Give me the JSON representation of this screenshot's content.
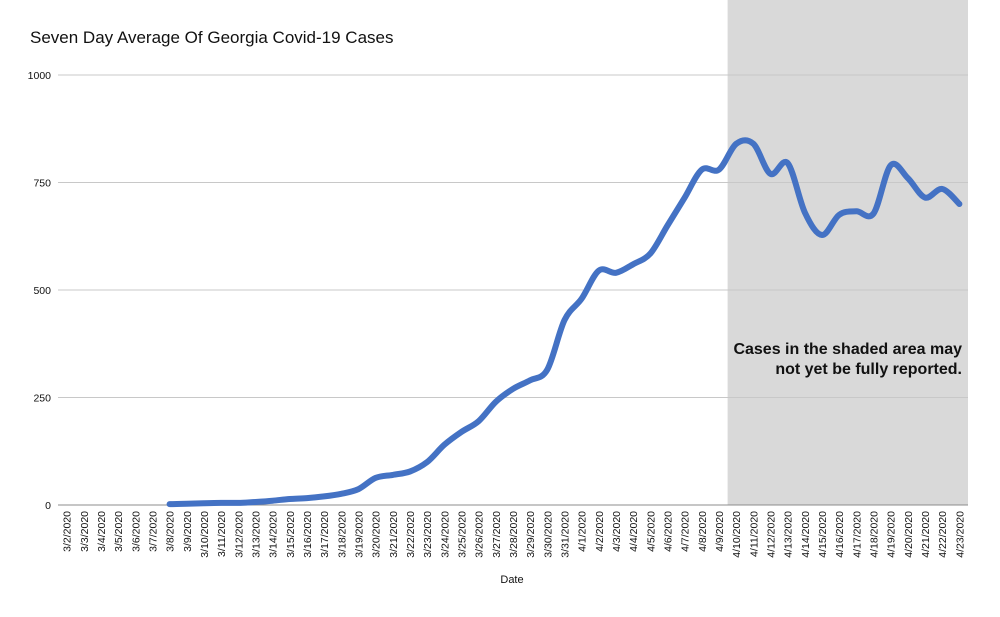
{
  "chart_data": {
    "type": "line",
    "title": "Seven Day Average Of Georgia Covid-19 Cases",
    "xlabel": "Date",
    "ylabel": "",
    "ylim": [
      0,
      1000
    ],
    "yticks": [
      0,
      250,
      500,
      750,
      1000
    ],
    "grid": true,
    "line_color": "#4472c4",
    "shade_color": "#d9d9d9",
    "shade_range": [
      "4/10/2020",
      "4/23/2020"
    ],
    "annotation": [
      "Cases in the shaded area may",
      "not yet be fully reported."
    ],
    "categories": [
      "3/2/2020",
      "3/3/2020",
      "3/4/2020",
      "3/5/2020",
      "3/6/2020",
      "3/7/2020",
      "3/8/2020",
      "3/9/2020",
      "3/10/2020",
      "3/11/2020",
      "3/12/2020",
      "3/13/2020",
      "3/14/2020",
      "3/15/2020",
      "3/16/2020",
      "3/17/2020",
      "3/18/2020",
      "3/19/2020",
      "3/20/2020",
      "3/21/2020",
      "3/22/2020",
      "3/23/2020",
      "3/24/2020",
      "3/25/2020",
      "3/26/2020",
      "3/27/2020",
      "3/28/2020",
      "3/29/2020",
      "3/30/2020",
      "3/31/2020",
      "4/1/2020",
      "4/2/2020",
      "4/3/2020",
      "4/4/2020",
      "4/5/2020",
      "4/6/2020",
      "4/7/2020",
      "4/8/2020",
      "4/9/2020",
      "4/10/2020",
      "4/11/2020",
      "4/12/2020",
      "4/13/2020",
      "4/14/2020",
      "4/15/2020",
      "4/16/2020",
      "4/17/2020",
      "4/18/2020",
      "4/19/2020",
      "4/20/2020",
      "4/21/2020",
      "4/22/2020",
      "4/23/2020"
    ],
    "series": [
      {
        "values": [
          null,
          null,
          null,
          null,
          null,
          null,
          2,
          3,
          4,
          5,
          5,
          7,
          10,
          14,
          16,
          20,
          26,
          37,
          63,
          70,
          78,
          100,
          140,
          170,
          195,
          240,
          270,
          290,
          315,
          430,
          480,
          545,
          540,
          560,
          585,
          650,
          715,
          780,
          780,
          840,
          840,
          770,
          795,
          680,
          628,
          675,
          683,
          678,
          790,
          760,
          715,
          735,
          700
        ]
      }
    ]
  }
}
